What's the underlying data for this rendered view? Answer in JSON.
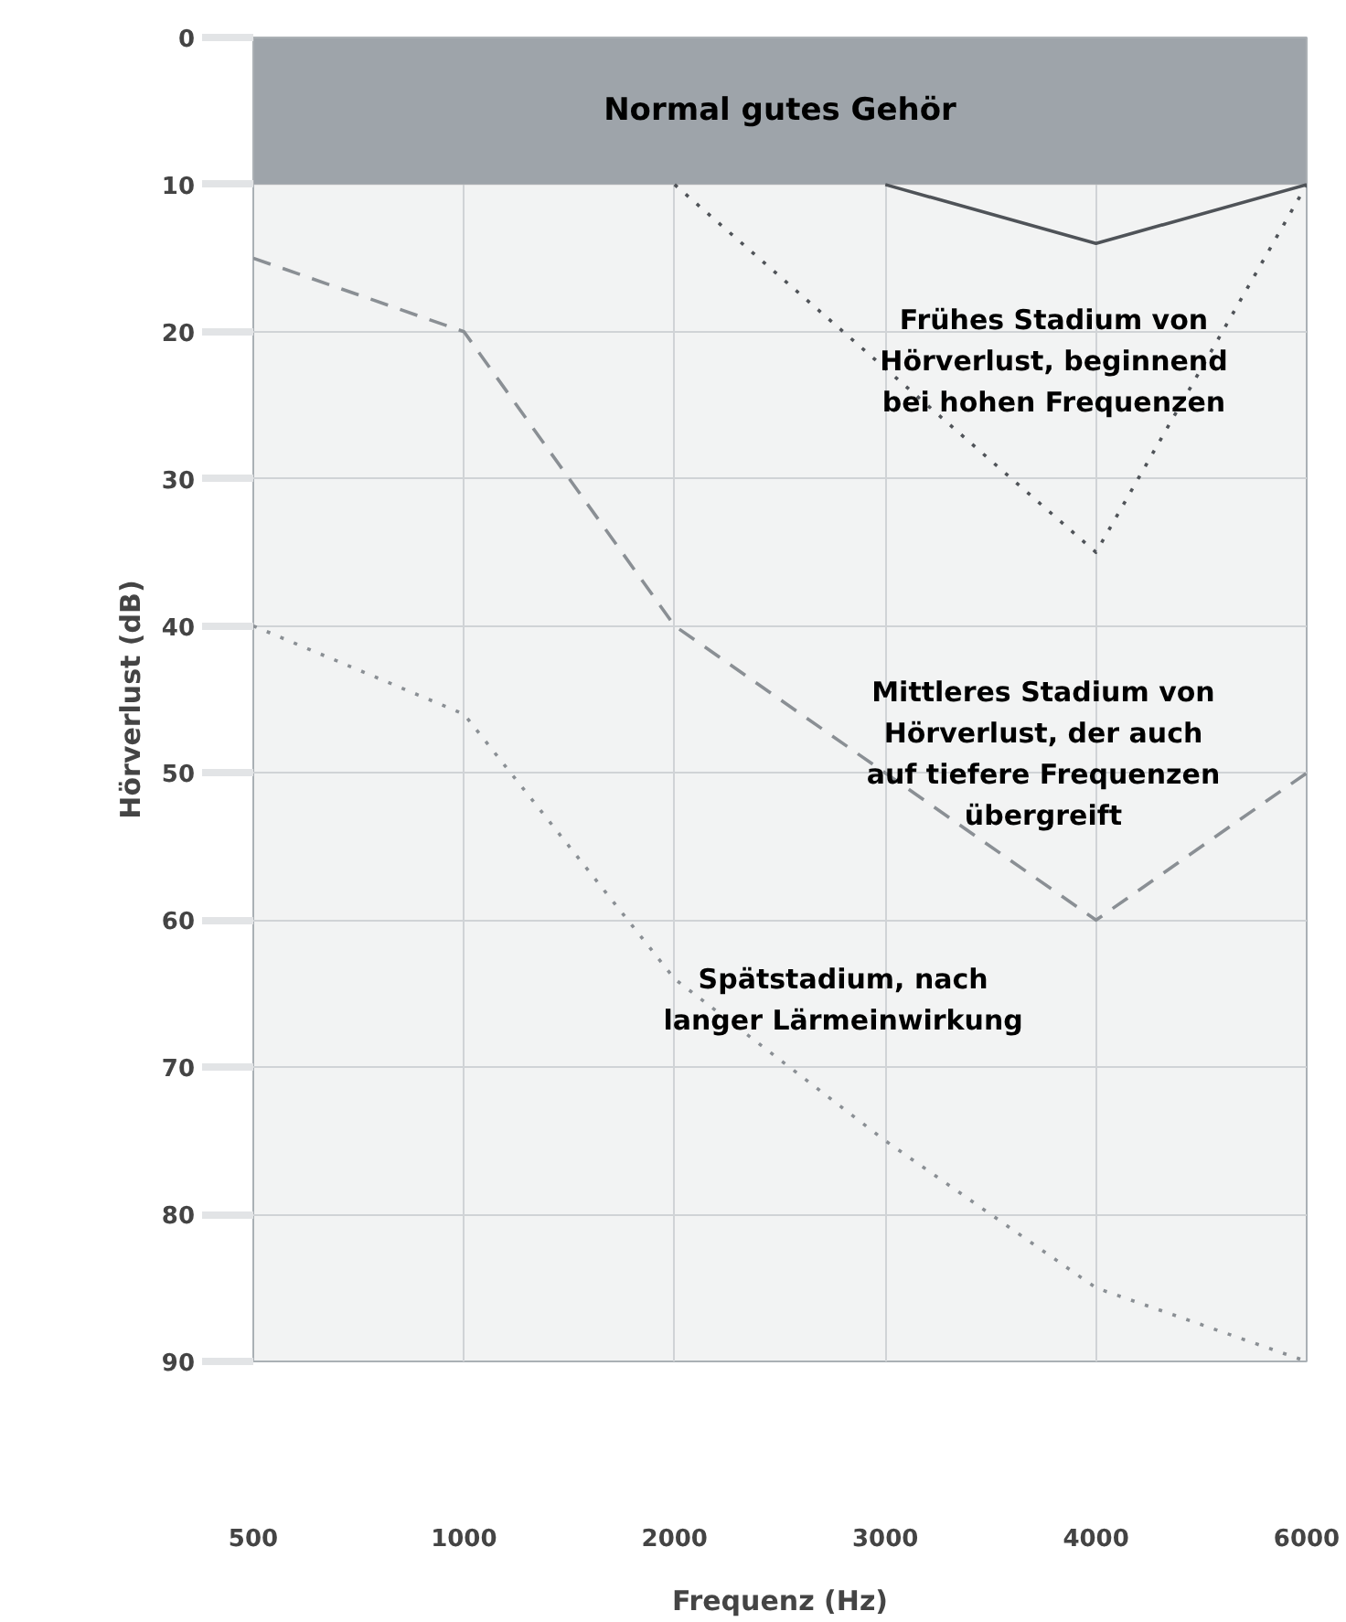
{
  "chart_data": {
    "type": "line",
    "xlabel": "Frequenz (Hz)",
    "ylabel": "Hörverlust (dB)",
    "categories": [
      "500",
      "1000",
      "2000",
      "3000",
      "4000",
      "6000"
    ],
    "ylim": [
      90,
      0
    ],
    "yticks": [
      0,
      10,
      20,
      30,
      40,
      50,
      60,
      70,
      80,
      90
    ],
    "grid": true,
    "legend": false,
    "marker": "none",
    "bands": [
      {
        "axis": "y",
        "from": 0,
        "to": 10,
        "label": "Normal gutes Gehör",
        "color": "#9ea4aa"
      }
    ],
    "series": [
      {
        "color": "#4f5358",
        "line_style": "solid",
        "values": [
          null,
          null,
          null,
          10,
          14,
          10
        ]
      },
      {
        "name": "Frühes Stadium von Hörverlust, beginnend bei hohen Frequenzen",
        "color": "#4f5358",
        "line_style": "dotted",
        "values": [
          null,
          null,
          10,
          null,
          35,
          10
        ]
      },
      {
        "name": "Mittleres Stadium von Hörverlust, der auch auf tiefere Frequenzen übergreift",
        "color": "#8a8f94",
        "line_style": "dashed",
        "values": [
          15,
          20,
          40,
          50,
          60,
          50
        ]
      },
      {
        "name": "Spätstadium, nach langer Lärmeinwirkung",
        "color": "#8a8f94",
        "line_style": "dotted",
        "values": [
          40,
          46,
          64,
          75,
          85,
          90
        ]
      }
    ]
  }
}
